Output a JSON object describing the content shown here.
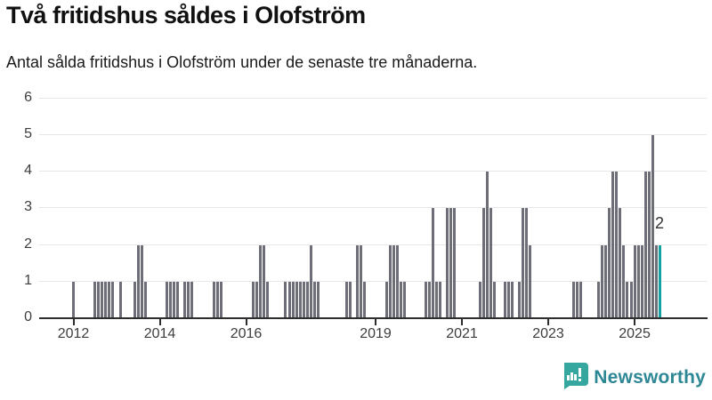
{
  "header": {
    "title": "Två fritidshus såldes i Olofström",
    "subtitle": "Antal sålda fritidshus i Olofström under de senaste tre månaderna."
  },
  "chart_data": {
    "type": "bar",
    "title": "Två fritidshus såldes i Olofström",
    "xlabel": "",
    "ylabel": "",
    "start_month": "2012-01",
    "frequency": "monthly",
    "values": [
      1,
      0,
      0,
      0,
      0,
      0,
      1,
      1,
      1,
      1,
      1,
      1,
      0,
      1,
      0,
      0,
      0,
      1,
      2,
      2,
      1,
      0,
      0,
      0,
      0,
      0,
      1,
      1,
      1,
      1,
      0,
      1,
      1,
      1,
      0,
      0,
      0,
      0,
      0,
      1,
      1,
      1,
      0,
      0,
      0,
      0,
      0,
      0,
      0,
      0,
      1,
      1,
      2,
      2,
      1,
      0,
      0,
      0,
      0,
      1,
      1,
      1,
      1,
      1,
      1,
      1,
      2,
      1,
      1,
      0,
      0,
      0,
      0,
      0,
      0,
      0,
      1,
      1,
      0,
      2,
      2,
      1,
      0,
      0,
      0,
      0,
      0,
      1,
      2,
      2,
      2,
      1,
      1,
      0,
      0,
      0,
      0,
      0,
      1,
      1,
      3,
      1,
      1,
      0,
      3,
      3,
      3,
      0,
      0,
      0,
      0,
      0,
      0,
      1,
      3,
      4,
      3,
      1,
      0,
      0,
      1,
      1,
      1,
      0,
      1,
      3,
      3,
      2,
      0,
      0,
      0,
      0,
      0,
      0,
      0,
      0,
      0,
      0,
      0,
      1,
      1,
      1,
      0,
      0,
      0,
      0,
      1,
      2,
      2,
      3,
      4,
      4,
      3,
      2,
      1,
      1,
      2,
      2,
      2,
      4,
      4,
      5,
      2,
      2
    ],
    "ylim": [
      0,
      6
    ],
    "yticks": [
      0,
      1,
      2,
      3,
      4,
      5,
      6
    ],
    "xticks": [
      {
        "label": "2012",
        "month_index": 0
      },
      {
        "label": "2014",
        "month_index": 24
      },
      {
        "label": "2016",
        "month_index": 48
      },
      {
        "label": "2019",
        "month_index": 84
      },
      {
        "label": "2021",
        "month_index": 108
      },
      {
        "label": "2023",
        "month_index": 132
      },
      {
        "label": "2025",
        "month_index": 156
      }
    ],
    "grid": true,
    "legend_position": "none",
    "highlight_last": true,
    "highlight_value_label": "2",
    "colors": {
      "bar": "#6e6e78",
      "highlight": "#14a1a1",
      "grid": "#e7e7e7",
      "axis": "#2d2d2d"
    }
  },
  "footer": {
    "brand": "Newsworthy"
  }
}
